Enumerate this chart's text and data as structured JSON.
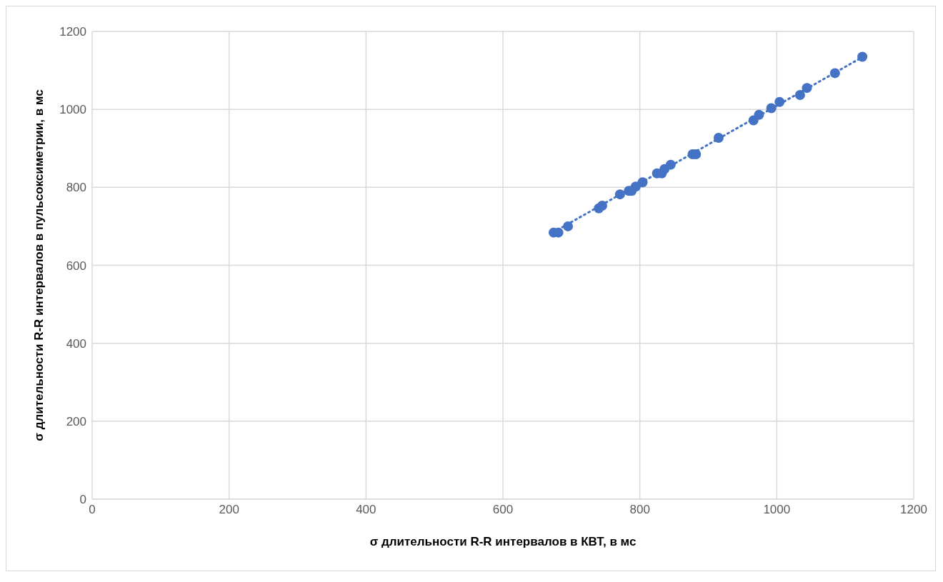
{
  "chart_data": {
    "type": "scatter",
    "xlabel": "σ длительности R-R интервалов в КВТ, в мс",
    "ylabel": "σ длительности R-R интервалов в пульсоксиметрии, в мс",
    "x": [
      674,
      681,
      695,
      740,
      745,
      771,
      784,
      788,
      794,
      804,
      825,
      832,
      836,
      845,
      877,
      882,
      915,
      966,
      974,
      992,
      1004,
      1034,
      1044,
      1085,
      1125
    ],
    "series": [
      {
        "color": "#4472c4",
        "marker": "circle",
        "values": [
          684,
          684,
          700,
          746,
          753,
          782,
          791,
          791,
          802,
          813,
          836,
          836,
          847,
          858,
          885,
          885,
          927,
          972,
          986,
          1003,
          1019,
          1037,
          1055,
          1093,
          1135
        ]
      },
      {
        "type": "line",
        "color": "#4472c4",
        "line_style": "dotted",
        "marker": "none",
        "x": [
          674,
          1125
        ],
        "values": [
          685,
          1134
        ]
      }
    ],
    "xlim": [
      0,
      1200
    ],
    "xticks": [
      0,
      200,
      400,
      600,
      800,
      1000,
      1200
    ],
    "ylim": [
      0,
      1200
    ],
    "yticks": [
      0,
      200,
      400,
      600,
      800,
      1000,
      1200
    ],
    "grid": true
  }
}
